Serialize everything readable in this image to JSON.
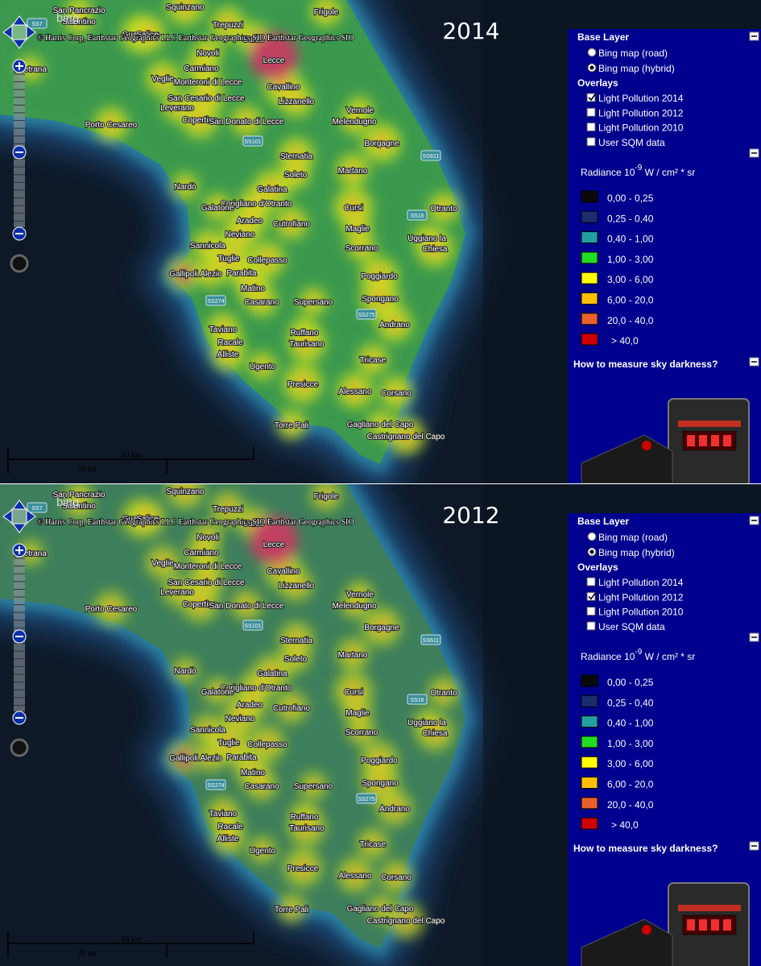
{
  "attribution": "© Harris Corp, Earthstar Geographics LLC Earthstar Geographics SIO Earthstar Geographics SIO",
  "logo": "bing",
  "scale": {
    "metric": "50 km",
    "imperial": "20 mi"
  },
  "towns": [
    "San Pancrazio",
    "Squinzano",
    "Trepuzzi",
    "Frigole",
    "Salentino",
    "Guagnano",
    "Salice",
    "Surbo",
    "Novoli",
    "Avetrana",
    "Lecce",
    "Veglie",
    "Carmiano",
    "Monteroni di Lecce",
    "Cavallino",
    "San Cesario di Lecce",
    "Lizzanello",
    "Leverano",
    "Vernole",
    "Copertino",
    "Porto Cesareo",
    "San Donato di Lecce",
    "Melendugno",
    "Borgagne",
    "Sternatia",
    "Martano",
    "Soleto",
    "Nardò",
    "Galatina",
    "Corigliano d'Otranto",
    "Otranto",
    "Galatone",
    "Cursi",
    "Aradeo",
    "Cutrofiano",
    "Maglie",
    "Uggiano la",
    "Chiesa",
    "Neviano",
    "Sannicola",
    "Scorrano",
    "Tuglie",
    "Collepasso",
    "Gallipoli",
    "Alezio",
    "Parabita",
    "Poggiardo",
    "Matino",
    "Casarano",
    "Supersano",
    "Spongano",
    "Andrano",
    "Taviano",
    "Ruffano",
    "Racale",
    "Taurisano",
    "Alliste",
    "Tricase",
    "Ugento",
    "Presicce",
    "Alessano",
    "Corsano",
    "Torre Pali",
    "Gagliano del Capo",
    "Castrignano del Capo"
  ],
  "roads": [
    "SS7",
    "SS101",
    "SS611",
    "SS16",
    "SS274",
    "SS275"
  ],
  "sidebar": {
    "base_layer": {
      "title": "Base Layer",
      "options": [
        "Bing map (road)",
        "Bing map (hybrid)"
      ]
    },
    "overlays": {
      "title": "Overlays",
      "options": [
        "Light Pollution 2014",
        "Light Pollution 2012",
        "Light Pollution 2010",
        "User SQM data"
      ]
    },
    "legend": {
      "title": {
        "prefix": "Radiance 10",
        "exponent": "-9",
        "suffix": " W / cm² * sr"
      },
      "entries": [
        {
          "label": "0,00 - 0,25",
          "color": "#0a0a0a"
        },
        {
          "label": "0,25 - 0,40",
          "color": "#1b2d6e"
        },
        {
          "label": "0,40 - 1,00",
          "color": "#22a0a0"
        },
        {
          "label": "1,00 - 3,00",
          "color": "#22dd22"
        },
        {
          "label": "3,00 - 6,00",
          "color": "#ffff00"
        },
        {
          "label": "6,00 - 20,0",
          "color": "#ffbf00"
        },
        {
          "label": "20,0 - 40,0",
          "color": "#e8602a"
        },
        {
          "label": "> 40,0",
          "color": "#d00000"
        }
      ]
    },
    "help": "How to measure sky darkness?"
  },
  "panels": [
    {
      "year": "2014",
      "base_checked": [
        false,
        true
      ],
      "overlays_checked": [
        true,
        false,
        false,
        false
      ]
    },
    {
      "year": "2012",
      "base_checked": [
        false,
        true
      ],
      "overlays_checked": [
        false,
        true,
        false,
        false
      ]
    }
  ]
}
